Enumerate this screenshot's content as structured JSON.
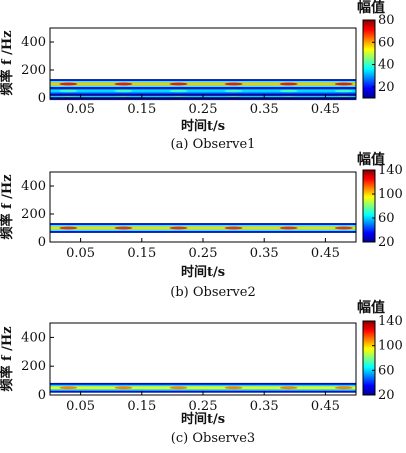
{
  "chart_data": [
    {
      "type": "spectrogram",
      "caption": "(a) Observe1",
      "xlabel": "时间t/s",
      "ylabel": "频率 f /Hz",
      "xticks": [
        "0.05",
        "0.15",
        "0.25",
        "0.35",
        "0.45"
      ],
      "yticks": [
        "0",
        "200",
        "400"
      ],
      "xlim": [
        0,
        0.5
      ],
      "ylim": [
        0,
        500
      ],
      "colorbar": {
        "title": "幅值",
        "ticks": [
          "20",
          "40",
          "60",
          "80"
        ],
        "range": [
          10,
          80
        ]
      },
      "bands": [
        {
          "freq": 20,
          "amplitude": 45
        },
        {
          "freq": 50,
          "amplitude": 40
        },
        {
          "freq": 100,
          "amplitude": 70
        }
      ]
    },
    {
      "type": "spectrogram",
      "caption": "(b) Observe2",
      "xlabel": "时间t/s",
      "ylabel": "频率 f /Hz",
      "xticks": [
        "0.05",
        "0.15",
        "0.25",
        "0.35",
        "0.45"
      ],
      "yticks": [
        "0",
        "200",
        "400"
      ],
      "xlim": [
        0,
        0.5
      ],
      "ylim": [
        0,
        500
      ],
      "colorbar": {
        "title": "幅值",
        "ticks": [
          "20",
          "60",
          "100",
          "140"
        ],
        "range": [
          20,
          140
        ]
      },
      "bands": [
        {
          "freq": 100,
          "amplitude": 120
        }
      ]
    },
    {
      "type": "spectrogram",
      "caption": "(c) Observe3",
      "xlabel": "时间t/s",
      "ylabel": "频率 f /Hz",
      "xticks": [
        "0.05",
        "0.15",
        "0.25",
        "0.35",
        "0.45"
      ],
      "yticks": [
        "0",
        "200",
        "400"
      ],
      "xlim": [
        0,
        0.5
      ],
      "ylim": [
        0,
        500
      ],
      "colorbar": {
        "title": "幅值",
        "ticks": [
          "20",
          "60",
          "100",
          "140"
        ],
        "range": [
          20,
          140
        ]
      },
      "bands": [
        {
          "freq": 50,
          "amplitude": 110
        }
      ]
    }
  ]
}
